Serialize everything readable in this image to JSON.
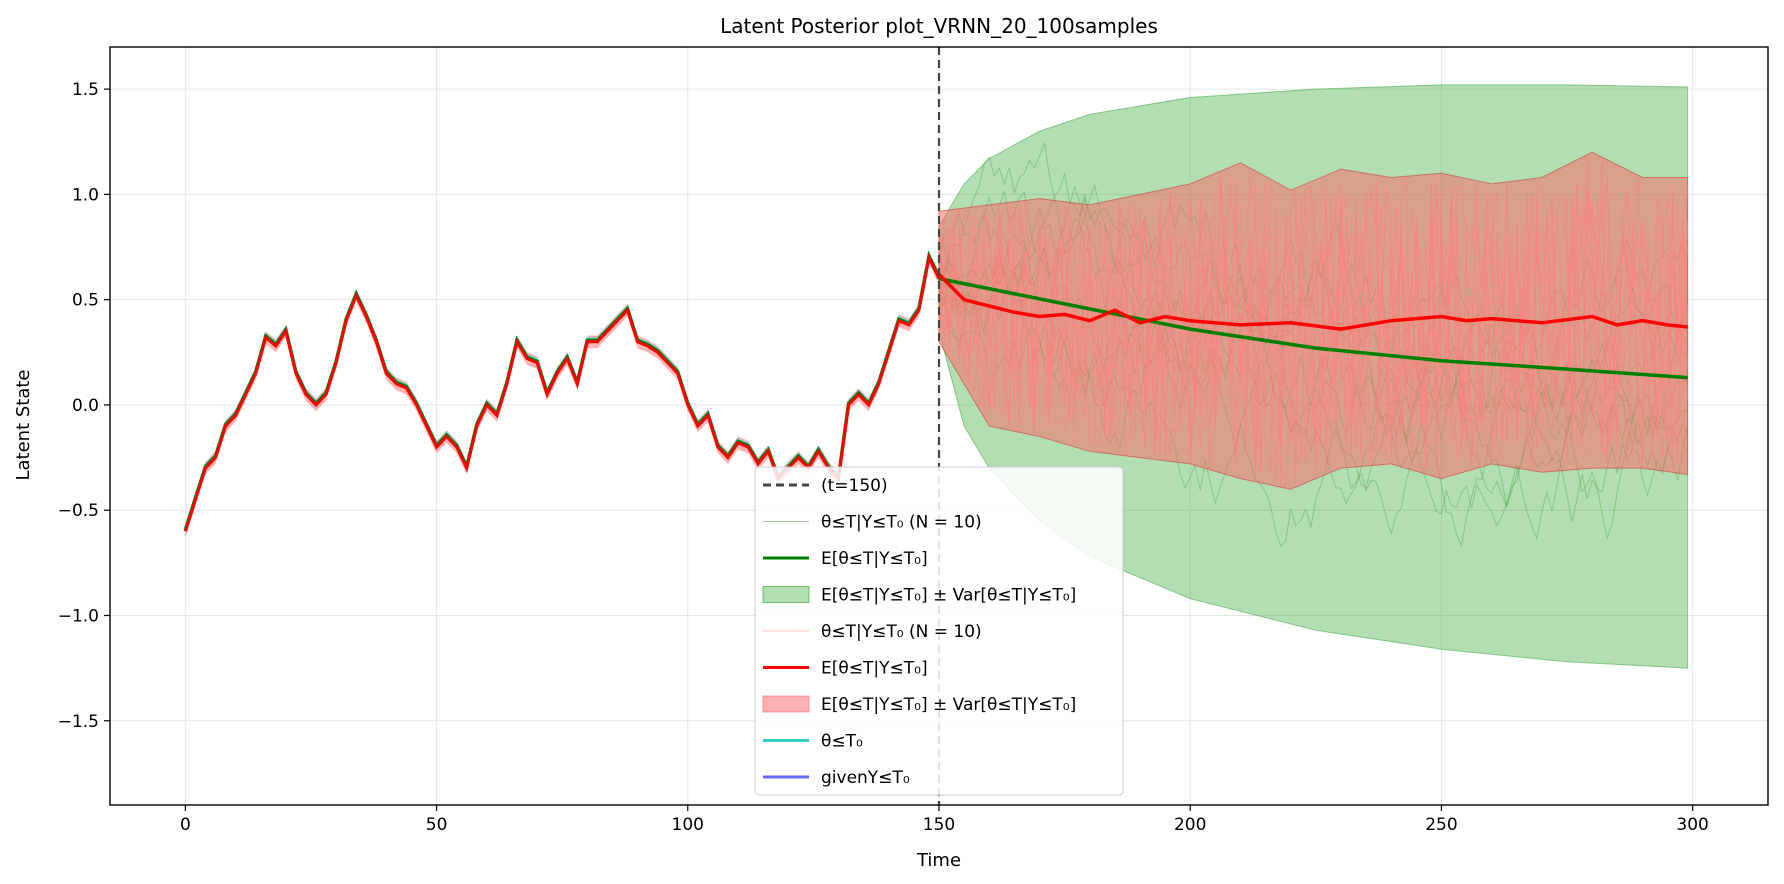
{
  "chart_data": {
    "type": "line",
    "title": "Latent Posterior plot_VRNN_20_100samples",
    "xlabel": "Time",
    "ylabel": "Latent State",
    "xlim": [
      -15,
      315
    ],
    "ylim": [
      -1.9,
      1.7
    ],
    "xticks": [
      0,
      50,
      100,
      150,
      200,
      250,
      300
    ],
    "yticks": [
      -1.5,
      -1.0,
      -0.5,
      0.0,
      0.5,
      1.0,
      1.5
    ],
    "xtick_labels": [
      "0",
      "50",
      "100",
      "150",
      "200",
      "250",
      "300"
    ],
    "ytick_labels": [
      "−1.5",
      "−1.0",
      "−0.5",
      "0.0",
      "0.5",
      "1.0",
      "1.5"
    ],
    "grid": true,
    "legend_position": "lower center",
    "forecast_start": 150,
    "history": {
      "x": [
        0,
        2,
        4,
        6,
        8,
        10,
        12,
        14,
        16,
        18,
        20,
        22,
        24,
        26,
        28,
        30,
        32,
        34,
        36,
        38,
        40,
        42,
        44,
        46,
        48,
        50,
        52,
        54,
        56,
        58,
        60,
        62,
        64,
        66,
        68,
        70,
        72,
        74,
        76,
        78,
        80,
        82,
        84,
        86,
        88,
        90,
        92,
        94,
        96,
        98,
        100,
        102,
        104,
        106,
        108,
        110,
        112,
        114,
        116,
        118,
        120,
        122,
        124,
        126,
        128,
        130,
        132,
        134,
        136,
        138,
        140,
        142,
        144,
        146,
        148,
        150
      ],
      "y": [
        -0.6,
        -0.45,
        -0.3,
        -0.25,
        -0.1,
        -0.05,
        0.05,
        0.15,
        0.32,
        0.28,
        0.35,
        0.15,
        0.05,
        0.0,
        0.05,
        0.2,
        0.4,
        0.52,
        0.42,
        0.3,
        0.15,
        0.1,
        0.08,
        0.0,
        -0.1,
        -0.2,
        -0.15,
        -0.2,
        -0.3,
        -0.1,
        0.0,
        -0.05,
        0.1,
        0.3,
        0.22,
        0.2,
        0.05,
        0.15,
        0.22,
        0.1,
        0.3,
        0.3,
        0.35,
        0.4,
        0.45,
        0.3,
        0.28,
        0.25,
        0.2,
        0.15,
        0.0,
        -0.1,
        -0.05,
        -0.2,
        -0.25,
        -0.18,
        -0.2,
        -0.28,
        -0.22,
        -0.35,
        -0.3,
        -0.25,
        -0.3,
        -0.22,
        -0.3,
        -0.35,
        0.0,
        0.05,
        0.0,
        0.1,
        0.25,
        0.4,
        0.38,
        0.45,
        0.7,
        0.6
      ]
    },
    "series": [
      {
        "legend": "(t=150)",
        "color": "#444444",
        "style": "dashed"
      },
      {
        "legend": "θ≤T|Y≤T₀ (N = 10)",
        "color": "#2ca02c",
        "style": "thin"
      },
      {
        "legend": "E[θ≤T|Y≤T₀]",
        "color": "#008000",
        "style": "solid"
      },
      {
        "legend": "E[θ≤T|Y≤T₀] ± Var[θ≤T|Y≤T₀]",
        "color": "#2ca02c",
        "style": "band"
      },
      {
        "legend": "θ≤T|Y≤T₀ (N = 10)",
        "color": "#ff7f7f",
        "style": "thin"
      },
      {
        "legend": "E[θ≤T|Y≤T₀]",
        "color": "#ff0000",
        "style": "solid"
      },
      {
        "legend": "E[θ≤T|Y≤T₀] ± Var[θ≤T|Y≤T₀]",
        "color": "#ff6666",
        "style": "band"
      },
      {
        "legend": "θ≤T₀",
        "color": "#3ec9c9",
        "style": "solid"
      },
      {
        "legend": "givenY≤T₀",
        "color": "#6b6bff",
        "style": "solid"
      }
    ],
    "green_mean": {
      "x": [
        150,
        175,
        200,
        225,
        250,
        275,
        299
      ],
      "y": [
        0.6,
        0.48,
        0.36,
        0.27,
        0.21,
        0.17,
        0.13
      ]
    },
    "green_band": {
      "x": [
        150,
        155,
        160,
        170,
        180,
        200,
        225,
        250,
        275,
        299
      ],
      "upper": [
        0.85,
        1.05,
        1.17,
        1.3,
        1.38,
        1.46,
        1.5,
        1.52,
        1.52,
        1.51
      ],
      "lower": [
        0.35,
        -0.1,
        -0.3,
        -0.55,
        -0.72,
        -0.92,
        -1.07,
        -1.16,
        -1.22,
        -1.25
      ]
    },
    "red_mean": {
      "x": [
        150,
        155,
        160,
        165,
        170,
        175,
        180,
        185,
        190,
        195,
        200,
        210,
        220,
        230,
        240,
        250,
        255,
        260,
        270,
        280,
        285,
        290,
        295,
        299
      ],
      "y": [
        0.62,
        0.5,
        0.47,
        0.44,
        0.42,
        0.43,
        0.4,
        0.45,
        0.39,
        0.42,
        0.4,
        0.38,
        0.39,
        0.36,
        0.4,
        0.42,
        0.4,
        0.41,
        0.39,
        0.42,
        0.38,
        0.4,
        0.38,
        0.37
      ]
    },
    "red_band": {
      "x": [
        150,
        160,
        170,
        180,
        190,
        200,
        210,
        220,
        230,
        240,
        250,
        260,
        270,
        280,
        290,
        299
      ],
      "upper": [
        0.92,
        0.95,
        0.98,
        0.95,
        1.0,
        1.05,
        1.15,
        1.02,
        1.12,
        1.08,
        1.1,
        1.05,
        1.08,
        1.2,
        1.08,
        1.08
      ],
      "lower": [
        0.3,
        -0.1,
        -0.15,
        -0.22,
        -0.25,
        -0.28,
        -0.35,
        -0.4,
        -0.3,
        -0.28,
        -0.35,
        -0.28,
        -0.32,
        -0.3,
        -0.3,
        -0.33
      ]
    }
  }
}
